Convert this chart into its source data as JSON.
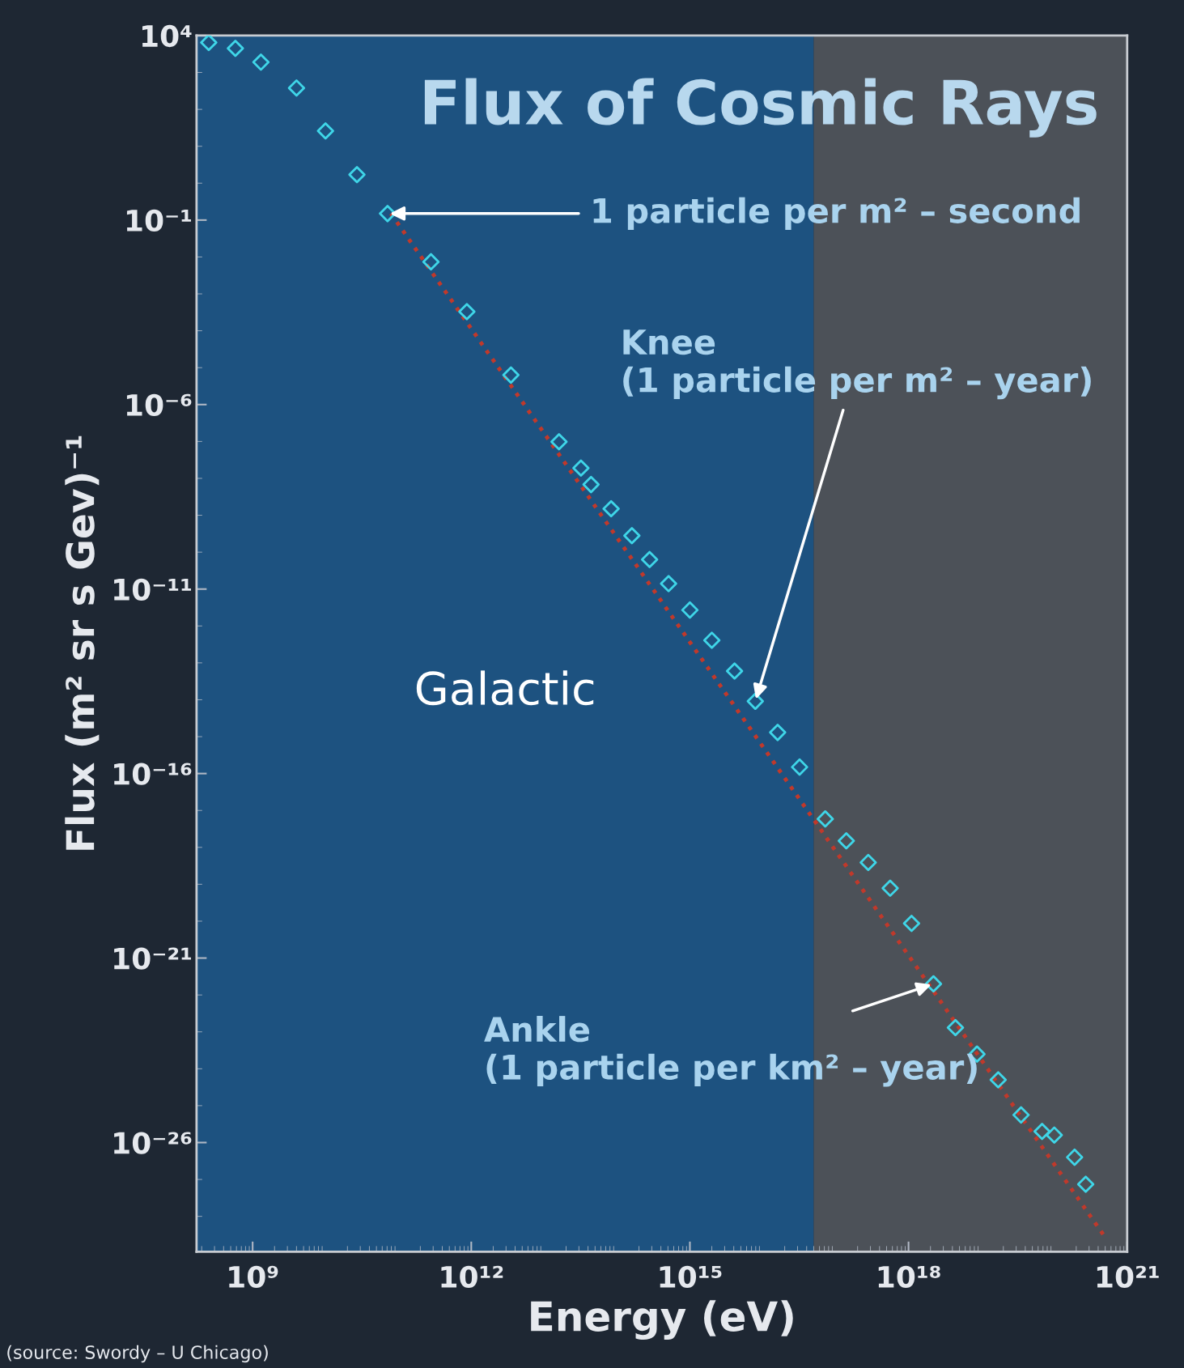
{
  "chart_data": {
    "type": "scatter",
    "title": "Flux of Cosmic Rays",
    "xlabel": "Energy (eV)",
    "ylabel": "Flux (m² sr s Gev)⁻¹",
    "log": "xy",
    "grid": false,
    "legend": false,
    "marker": "diamond",
    "xlim": [
      170000000.0,
      1e+21
    ],
    "ylim": [
      1.1e-29,
      10000.0
    ],
    "xticks": [
      {
        "value": 1000000000.0,
        "label": "10⁹"
      },
      {
        "value": 1000000000000.0,
        "label": "10¹²"
      },
      {
        "value": 1000000000000000.0,
        "label": "10¹⁵"
      },
      {
        "value": 1e+18,
        "label": "10¹⁸"
      },
      {
        "value": 1e+21,
        "label": "10²¹"
      }
    ],
    "yticks": [
      {
        "value": 10000.0,
        "label": "10⁴"
      },
      {
        "value": 0.1,
        "label": "10⁻¹"
      },
      {
        "value": 1e-06,
        "label": "10⁻⁶"
      },
      {
        "value": 1e-11,
        "label": "10⁻¹¹"
      },
      {
        "value": 1e-16,
        "label": "10⁻¹⁶"
      },
      {
        "value": 1e-21,
        "label": "10⁻²¹"
      },
      {
        "value": 1e-26,
        "label": "10⁻²⁶"
      }
    ],
    "bands": [
      {
        "axis": "x",
        "from": 170000000.0,
        "to": 5e+16,
        "label": "Galactic",
        "color": "#1d5a8e"
      },
      {
        "axis": "x",
        "from": 5e+16,
        "to": 1e+21,
        "color": "#55595f"
      }
    ],
    "series": [
      {
        "color": "#3fd6e8",
        "x": [
          250000000.0,
          580000000.0,
          1300000000.0,
          4000000000.0,
          10000000000.0,
          27000000000.0,
          71000000000.0,
          280000000000.0,
          870000000000.0,
          3500000000000.0,
          16000000000000.0,
          32000000000000.0,
          44000000000000.0,
          83000000000000.0,
          160000000000000.0,
          280000000000000.0,
          510000000000000.0,
          1000000000000000.0,
          2000000000000000.0,
          4100000000000000.0,
          7900000000000000.0,
          1.6e+16,
          3.2e+16,
          7.2e+16,
          1.4e+17,
          2.8e+17,
          5.6e+17,
          1.1e+18,
          2.2e+18,
          4.4e+18,
          8.7e+18,
          1.7e+19,
          3.5e+19,
          6.8e+19,
          1e+20,
          1.9e+20,
          2.7e+20
        ],
        "values": [
          6500.0,
          4500.0,
          1900.0,
          380.0,
          26,
          1.7,
          0.15,
          0.0074,
          0.00033,
          6.3e-06,
          9.8e-08,
          1.9e-08,
          6.8e-09,
          1.5e-09,
          2.8e-10,
          6.3e-11,
          1.4e-11,
          2.7e-12,
          4.1e-13,
          6e-14,
          9.1e-15,
          1.3e-15,
          1.5e-16,
          5.9e-18,
          1.5e-18,
          3.9e-19,
          7.8e-20,
          8.7e-21,
          2e-22,
          1.3e-23,
          2.5e-24,
          5e-25,
          5.6e-26,
          2e-26,
          1.6e-26,
          4e-27,
          7.4e-28
        ]
      },
      {
        "type": "line",
        "color": "#c0392b",
        "line_style": "dotted",
        "marker": "none",
        "x": [
          79000000000.0,
          4.7e+20
        ],
        "values": [
          0.15,
          3.2e-29
        ]
      }
    ],
    "annotations": [
      {
        "text": "1 particle per m² – second",
        "x": 71000000000.0,
        "y": 0.15
      },
      {
        "text": "Knee\n(1 particle per m² – year)",
        "x": 7900000000000000.0,
        "y": 9.1e-15
      },
      {
        "text": "Ankle\n(1 particle per km² – year)",
        "x": 2.2e+18,
        "y": 2e-22
      },
      "(source: Swordy – U Chicago)"
    ]
  }
}
